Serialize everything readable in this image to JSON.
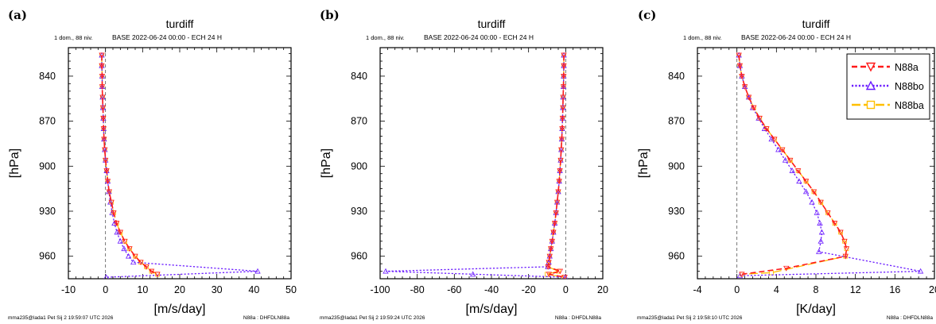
{
  "figure": {
    "colors": {
      "N88a": "#ff1a1a",
      "N88bo": "#6a1aff",
      "N88ba": "#ffbf00"
    }
  },
  "chart_data": [
    {
      "panel_label": "(a)",
      "type": "line",
      "title": "turdiff",
      "subtitle_left": "1 dom., 88 niv.",
      "subtitle_right": "BASE 2022-06-24 00:00 - ECH 24 H",
      "xlabel": "[m/s/day]",
      "ylabel": "[hPa]",
      "xlim": [
        -10,
        50
      ],
      "ylim": [
        975,
        821
      ],
      "y_reversed": true,
      "xticks": [
        -10,
        0,
        10,
        20,
        30,
        40,
        50
      ],
      "xtick_labels": [
        "-10",
        "0",
        "10",
        "20",
        "30",
        "40",
        "50"
      ],
      "yticks": [
        840,
        870,
        900,
        930,
        960
      ],
      "ytick_labels": [
        "840",
        "870",
        "900",
        "930",
        "960"
      ],
      "zero_line": true,
      "footer_left": "mma235@lada1 Pet Sij  2 19:59:07 UTC 2026",
      "footer_right": "N88a : DHFDLN88a",
      "show_legend": false,
      "series": [
        {
          "name": "N88a",
          "color": "#ff1a1a",
          "marker": "triangle-down",
          "dash": "dash",
          "x": [
            -1.0,
            -1.0,
            -0.9,
            -0.9,
            -0.8,
            -0.7,
            -0.6,
            -0.5,
            -0.4,
            -0.2,
            0.0,
            0.3,
            0.6,
            1.0,
            1.6,
            2.2,
            3.0,
            4.0,
            5.2,
            6.5,
            8.0,
            9.5,
            11.0,
            12.4,
            14.0
          ],
          "y": [
            826,
            833,
            840,
            847,
            854,
            861,
            868,
            875,
            882,
            889,
            896,
            903,
            910,
            917,
            924,
            931,
            938,
            944,
            950,
            955,
            960,
            964,
            967,
            970,
            972
          ]
        },
        {
          "name": "N88bo",
          "color": "#6a1aff",
          "marker": "triangle-up",
          "dash": "dot",
          "x": [
            -1.0,
            -1.0,
            -0.9,
            -0.9,
            -0.8,
            -0.7,
            -0.6,
            -0.5,
            -0.4,
            -0.2,
            0.0,
            0.3,
            0.6,
            0.9,
            1.3,
            1.8,
            2.4,
            3.1,
            4.0,
            5.0,
            6.2,
            7.5,
            41.0,
            0.2
          ],
          "y": [
            826,
            833,
            840,
            847,
            854,
            861,
            868,
            875,
            882,
            889,
            896,
            903,
            910,
            917,
            924,
            931,
            938,
            944,
            950,
            955,
            960,
            964,
            970,
            974
          ]
        },
        {
          "name": "N88ba",
          "color": "#ffbf00",
          "marker": "square",
          "dash": "longdash",
          "x": [
            -1.0,
            -1.0,
            -0.9,
            -0.9,
            -0.8,
            -0.7,
            -0.6,
            -0.5,
            -0.4,
            -0.2,
            0.0,
            0.3,
            0.6,
            1.0,
            1.6,
            2.2,
            3.0,
            4.0,
            5.2,
            6.5,
            8.0,
            9.5,
            11.0,
            12.4,
            14.0
          ],
          "y": [
            826,
            833,
            840,
            847,
            854,
            861,
            868,
            875,
            882,
            889,
            896,
            903,
            910,
            917,
            924,
            931,
            938,
            944,
            950,
            955,
            960,
            964,
            967,
            970,
            972
          ]
        }
      ]
    },
    {
      "panel_label": "(b)",
      "type": "line",
      "title": "turdiff",
      "subtitle_left": "1 dom., 88 niv.",
      "subtitle_right": "BASE 2022-06-24 00:00 - ECH 24 H",
      "xlabel": "[m/s/day]",
      "ylabel": "[hPa]",
      "xlim": [
        -100,
        20
      ],
      "ylim": [
        975,
        821
      ],
      "y_reversed": true,
      "xticks": [
        -100,
        -80,
        -60,
        -40,
        -20,
        0,
        20
      ],
      "xtick_labels": [
        "-100",
        "-80",
        "-60",
        "-40",
        "-20",
        "0",
        "20"
      ],
      "yticks": [
        840,
        870,
        900,
        930,
        960
      ],
      "ytick_labels": [
        "840",
        "870",
        "900",
        "930",
        "960"
      ],
      "zero_line": true,
      "footer_left": "mma235@lada1 Pet Sij  2 19:59:24 UTC 2026",
      "footer_right": "N88a : DHFDLN88a",
      "show_legend": false,
      "series": [
        {
          "name": "N88a",
          "color": "#ff1a1a",
          "marker": "triangle-down",
          "dash": "dash",
          "x": [
            -1.0,
            -1.0,
            -1.1,
            -1.2,
            -1.4,
            -1.5,
            -1.7,
            -1.9,
            -2.1,
            -2.4,
            -2.7,
            -3.1,
            -3.5,
            -4.0,
            -4.6,
            -5.2,
            -5.9,
            -6.6,
            -7.3,
            -8.0,
            -8.6,
            -9.1,
            -9.5,
            -3.0,
            -9.0,
            -0.5
          ],
          "y": [
            826,
            833,
            840,
            847,
            854,
            861,
            868,
            875,
            882,
            889,
            896,
            903,
            910,
            917,
            924,
            931,
            938,
            944,
            950,
            955,
            960,
            964,
            967,
            970,
            972,
            974
          ]
        },
        {
          "name": "N88bo",
          "color": "#6a1aff",
          "marker": "triangle-up",
          "dash": "dot",
          "x": [
            -1.0,
            -1.0,
            -1.1,
            -1.2,
            -1.4,
            -1.5,
            -1.7,
            -1.9,
            -2.1,
            -2.4,
            -2.7,
            -3.1,
            -3.5,
            -4.0,
            -4.6,
            -5.2,
            -5.9,
            -6.6,
            -7.3,
            -8.0,
            -8.6,
            -9.1,
            -9.6,
            -97.0,
            -50.0,
            -0.2
          ],
          "y": [
            826,
            833,
            840,
            847,
            854,
            861,
            868,
            875,
            882,
            889,
            896,
            903,
            910,
            917,
            924,
            931,
            938,
            944,
            950,
            955,
            960,
            964,
            967,
            970,
            972,
            974
          ]
        },
        {
          "name": "N88ba",
          "color": "#ffbf00",
          "marker": "square",
          "dash": "longdash",
          "x": [
            -1.0,
            -1.0,
            -1.1,
            -1.2,
            -1.4,
            -1.5,
            -1.7,
            -1.9,
            -2.1,
            -2.4,
            -2.7,
            -3.1,
            -3.5,
            -4.0,
            -4.6,
            -5.2,
            -5.9,
            -6.6,
            -7.3,
            -8.0,
            -8.6,
            -9.1,
            -9.5,
            -4.0,
            -10.0,
            -1.0
          ],
          "y": [
            826,
            833,
            840,
            847,
            854,
            861,
            868,
            875,
            882,
            889,
            896,
            903,
            910,
            917,
            924,
            931,
            938,
            944,
            950,
            955,
            960,
            964,
            967,
            970,
            972,
            974
          ]
        }
      ]
    },
    {
      "panel_label": "(c)",
      "type": "line",
      "title": "turdiff",
      "subtitle_left": "1 dom., 88 niv.",
      "subtitle_right": "BASE 2022-06-24 00:00 - ECH 24 H",
      "xlabel": "[K/day]",
      "ylabel": "[hPa]",
      "xlim": [
        -4,
        20
      ],
      "ylim": [
        975,
        821
      ],
      "y_reversed": true,
      "xticks": [
        -4,
        0,
        4,
        8,
        12,
        16,
        20
      ],
      "xtick_labels": [
        "-4",
        "0",
        "4",
        "8",
        "12",
        "16",
        "20"
      ],
      "yticks": [
        840,
        870,
        900,
        930,
        960
      ],
      "ytick_labels": [
        "840",
        "870",
        "900",
        "930",
        "960"
      ],
      "zero_line": true,
      "footer_left": "mma235@lada1 Pet Sij  2 19:58:10 UTC 2026",
      "footer_right": "N88a : DHFDLN88a",
      "show_legend": true,
      "legend_position": "top-right",
      "series": [
        {
          "name": "N88a",
          "color": "#ff1a1a",
          "marker": "triangle-down",
          "dash": "dash",
          "x": [
            0.2,
            0.3,
            0.5,
            0.8,
            1.2,
            1.7,
            2.3,
            3.0,
            3.8,
            4.6,
            5.4,
            6.2,
            7.0,
            7.8,
            8.5,
            9.2,
            9.9,
            10.5,
            10.9,
            11.1,
            11.0,
            5.0,
            0.5
          ],
          "y": [
            826,
            833,
            840,
            847,
            854,
            861,
            868,
            875,
            882,
            889,
            896,
            903,
            910,
            917,
            924,
            931,
            938,
            944,
            950,
            955,
            960,
            968,
            972
          ]
        },
        {
          "name": "N88bo",
          "color": "#6a1aff",
          "marker": "triangle-up",
          "dash": "dot",
          "x": [
            0.2,
            0.3,
            0.5,
            0.8,
            1.2,
            1.6,
            2.2,
            2.8,
            3.5,
            4.2,
            4.9,
            5.6,
            6.3,
            7.0,
            7.6,
            8.1,
            8.4,
            8.6,
            8.5,
            8.3,
            18.6,
            0.3
          ],
          "y": [
            826,
            833,
            840,
            847,
            854,
            861,
            868,
            875,
            882,
            889,
            896,
            903,
            910,
            917,
            924,
            931,
            938,
            944,
            950,
            957,
            970,
            973
          ]
        },
        {
          "name": "N88ba",
          "color": "#ffbf00",
          "marker": "square",
          "dash": "longdash",
          "x": [
            0.2,
            0.3,
            0.5,
            0.8,
            1.2,
            1.7,
            2.3,
            3.0,
            3.8,
            4.6,
            5.4,
            6.2,
            7.0,
            7.8,
            8.5,
            9.2,
            9.9,
            10.5,
            10.9,
            11.1,
            11.0,
            3.5,
            0.5
          ],
          "y": [
            826,
            833,
            840,
            847,
            854,
            861,
            868,
            875,
            882,
            889,
            896,
            903,
            910,
            917,
            924,
            931,
            938,
            944,
            950,
            955,
            960,
            971,
            972
          ]
        }
      ]
    }
  ]
}
